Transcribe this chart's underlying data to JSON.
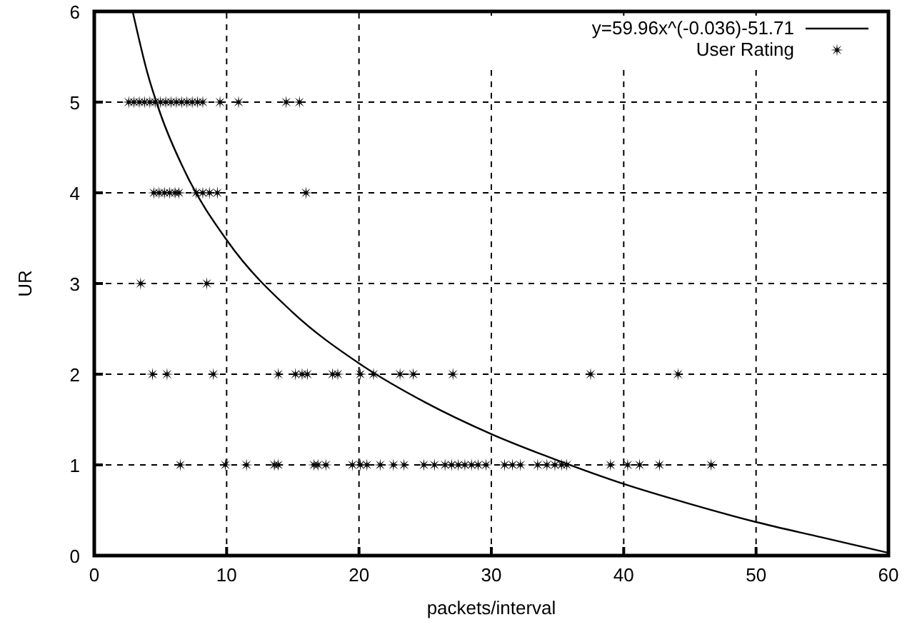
{
  "chart_data": {
    "type": "scatter",
    "xlabel": "packets/interval",
    "ylabel": "UR",
    "xlim": [
      0,
      60
    ],
    "ylim": [
      0,
      6
    ],
    "xticks": [
      0,
      10,
      20,
      30,
      40,
      50,
      60
    ],
    "yticks": [
      0,
      1,
      2,
      3,
      4,
      5,
      6
    ],
    "grid": true,
    "legend": "top right",
    "series": [
      {
        "name": "y=59.96x^(-0.036)-51.71",
        "type": "line",
        "color": "#000000",
        "marker": "none",
        "line_style": "solid",
        "x": [
          2.9,
          4,
          5,
          7,
          10,
          15,
          20,
          25,
          30,
          35,
          40,
          45,
          50,
          55,
          60
        ],
        "values": [
          6.0,
          5.33,
          4.87,
          4.19,
          3.48,
          2.68,
          2.12,
          1.69,
          1.34,
          1.05,
          0.79,
          0.57,
          0.37,
          0.2,
          0.03
        ]
      },
      {
        "name": "User Rating",
        "color": "#000000",
        "marker": "star",
        "x": [
          2.6,
          3,
          3.4,
          3.8,
          4.2,
          4.6,
          5,
          5.4,
          5.8,
          6.2,
          6.6,
          7,
          7.4,
          7.8,
          8.2,
          9.5,
          10.9,
          14.5,
          15.5,
          4.5,
          4.9,
          5.3,
          5.7,
          6.1,
          6.4,
          7.7,
          8.2,
          8.7,
          9.3,
          16,
          3.5,
          8.5,
          4.4,
          5.5,
          9,
          13.9,
          15.2,
          15.7,
          16.1,
          18,
          18.4,
          20.1,
          21.1,
          23.1,
          24.1,
          27.1,
          37.5,
          44.1,
          6.5,
          9.9,
          11.5,
          13.6,
          13.9,
          16.6,
          16.9,
          17.5,
          19.5,
          20.1,
          20.6,
          21.6,
          22.6,
          23.4,
          24.9,
          25.7,
          26.5,
          27,
          27.5,
          28,
          28.5,
          29,
          29.6,
          31,
          31.6,
          32.2,
          33.5,
          34.2,
          34.8,
          35.3,
          35.7,
          39,
          40.3,
          41.2,
          42.7,
          46.6
        ],
        "values": [
          5,
          5,
          5,
          5,
          5,
          5,
          5,
          5,
          5,
          5,
          5,
          5,
          5,
          5,
          5,
          5,
          5,
          5,
          5,
          4,
          4,
          4,
          4,
          4,
          4,
          4,
          4,
          4,
          4,
          4,
          3,
          3,
          2,
          2,
          2,
          2,
          2,
          2,
          2,
          2,
          2,
          2,
          2,
          2,
          2,
          2,
          2,
          2,
          1,
          1,
          1,
          1,
          1,
          1,
          1,
          1,
          1,
          1,
          1,
          1,
          1,
          1,
          1,
          1,
          1,
          1,
          1,
          1,
          1,
          1,
          1,
          1,
          1,
          1,
          1,
          1,
          1,
          1,
          1,
          1,
          1,
          1,
          1,
          1
        ]
      }
    ]
  }
}
